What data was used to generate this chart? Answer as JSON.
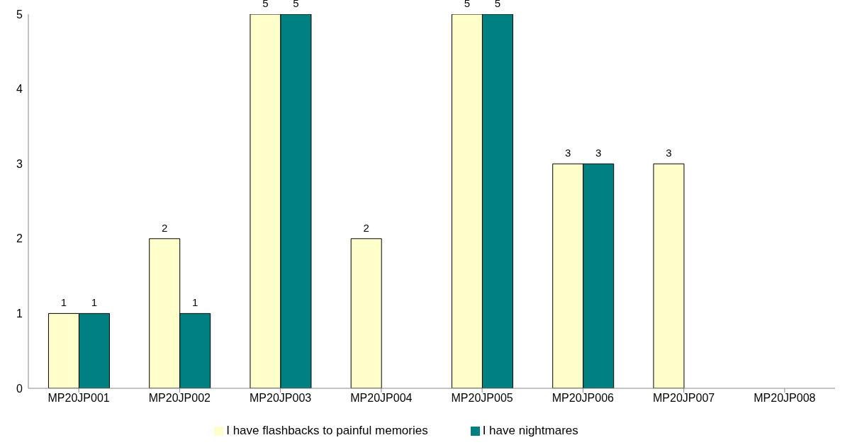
{
  "chart_data": {
    "type": "bar",
    "categories": [
      "MP20JP001",
      "MP20JP002",
      "MP20JP003",
      "MP20JP004",
      "MP20JP005",
      "MP20JP006",
      "MP20JP007",
      "MP20JP008"
    ],
    "series": [
      {
        "name": "I have flashbacks to painful memories",
        "color": "#ffffcc",
        "values": [
          1,
          2,
          5,
          2,
          5,
          3,
          3,
          null
        ]
      },
      {
        "name": "I have nightmares",
        "color": "#008080",
        "values": [
          1,
          1,
          5,
          null,
          5,
          3,
          null,
          null
        ]
      }
    ],
    "ylim": [
      0,
      5
    ],
    "yticks": [
      0,
      1,
      2,
      3,
      4,
      5
    ],
    "grid": false,
    "legend": "bottom",
    "data_labels": true
  }
}
